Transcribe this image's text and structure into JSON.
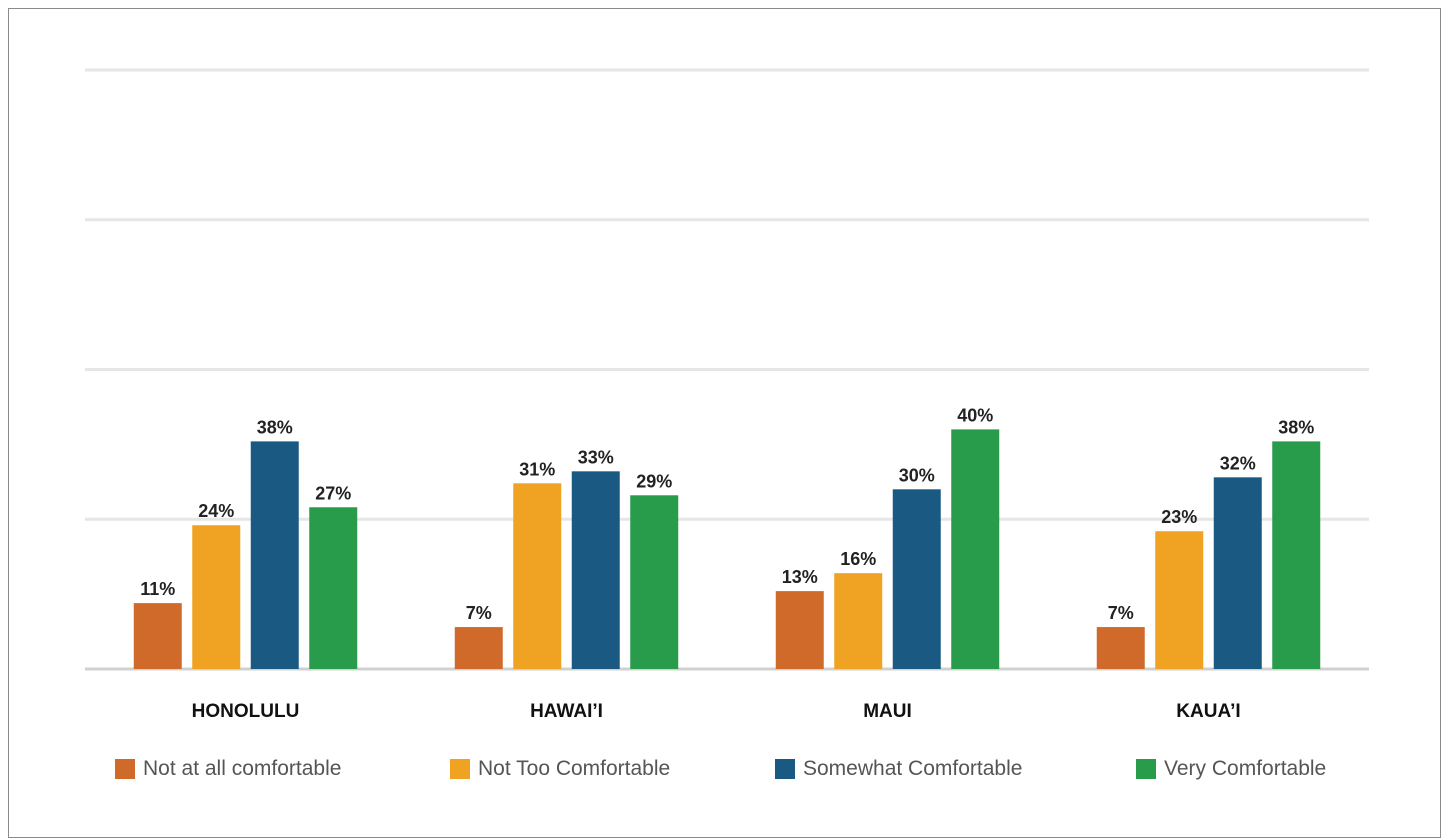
{
  "chart_data": {
    "type": "bar",
    "categories": [
      "HONOLULU",
      "HAWAI’I",
      "MAUI",
      "KAUA’I"
    ],
    "series": [
      {
        "name": "Not at all comfortable",
        "color": "#cf6a2b",
        "values": [
          11,
          7,
          13,
          7
        ]
      },
      {
        "name": "Not Too Comfortable",
        "color": "#f0a323",
        "values": [
          24,
          31,
          16,
          23
        ]
      },
      {
        "name": "Somewhat Comfortable",
        "color": "#1a5a82",
        "values": [
          38,
          33,
          30,
          32
        ]
      },
      {
        "name": "Very Comfortable",
        "color": "#289c4b",
        "values": [
          27,
          29,
          40,
          38
        ]
      }
    ],
    "value_suffix": "%",
    "ylim": [
      0,
      100
    ],
    "yticks": [
      0,
      25,
      50,
      75,
      100
    ],
    "grid": true,
    "legend_position": "bottom",
    "gridline_color": "#e6e6e6",
    "axis_color": "#d0d0d0"
  }
}
